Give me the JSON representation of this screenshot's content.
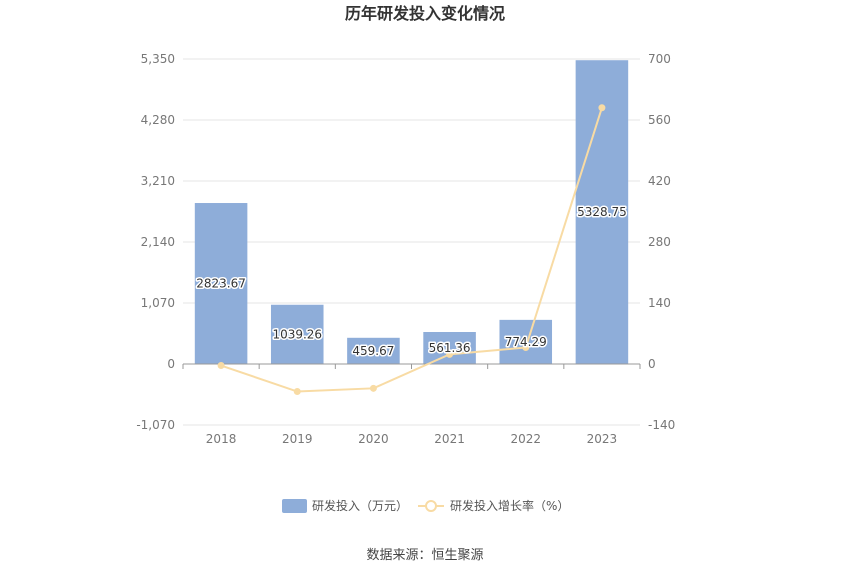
{
  "chart_data": {
    "type": "bar",
    "title": "历年研发投入变化情况",
    "categories": [
      "2018",
      "2019",
      "2020",
      "2021",
      "2022",
      "2023"
    ],
    "series": [
      {
        "name": "研发投入（万元）",
        "type": "bar",
        "axis": "left",
        "color": "#8eadd9",
        "values": [
          2823.67,
          1039.26,
          459.67,
          561.36,
          774.29,
          5328.75
        ],
        "labels": [
          "2823.67",
          "1039.26",
          "459.67",
          "561.36",
          "774.29",
          "5328.75"
        ]
      },
      {
        "name": "研发投入增长率（%）",
        "type": "line",
        "axis": "right",
        "color": "#f8dba4",
        "values": [
          -3.5,
          -63.2,
          -55.8,
          22.1,
          37.9,
          588.2
        ]
      }
    ],
    "y_left": {
      "ylim": [
        -1070,
        5350
      ],
      "ticks": [
        5350,
        4280,
        3210,
        2140,
        1070,
        0,
        -1070
      ],
      "tick_labels": [
        "5,350",
        "4,280",
        "3,210",
        "2,140",
        "1,070",
        "0",
        "-1,070"
      ]
    },
    "y_right": {
      "ylim": [
        -140,
        700
      ],
      "ticks": [
        700,
        560,
        420,
        280,
        140,
        0,
        -140
      ],
      "tick_labels": [
        "700",
        "560",
        "420",
        "280",
        "140",
        "0",
        "-140"
      ]
    },
    "grid": true,
    "legend_position": "bottom-center"
  },
  "source_text": "数据来源：恒生聚源"
}
